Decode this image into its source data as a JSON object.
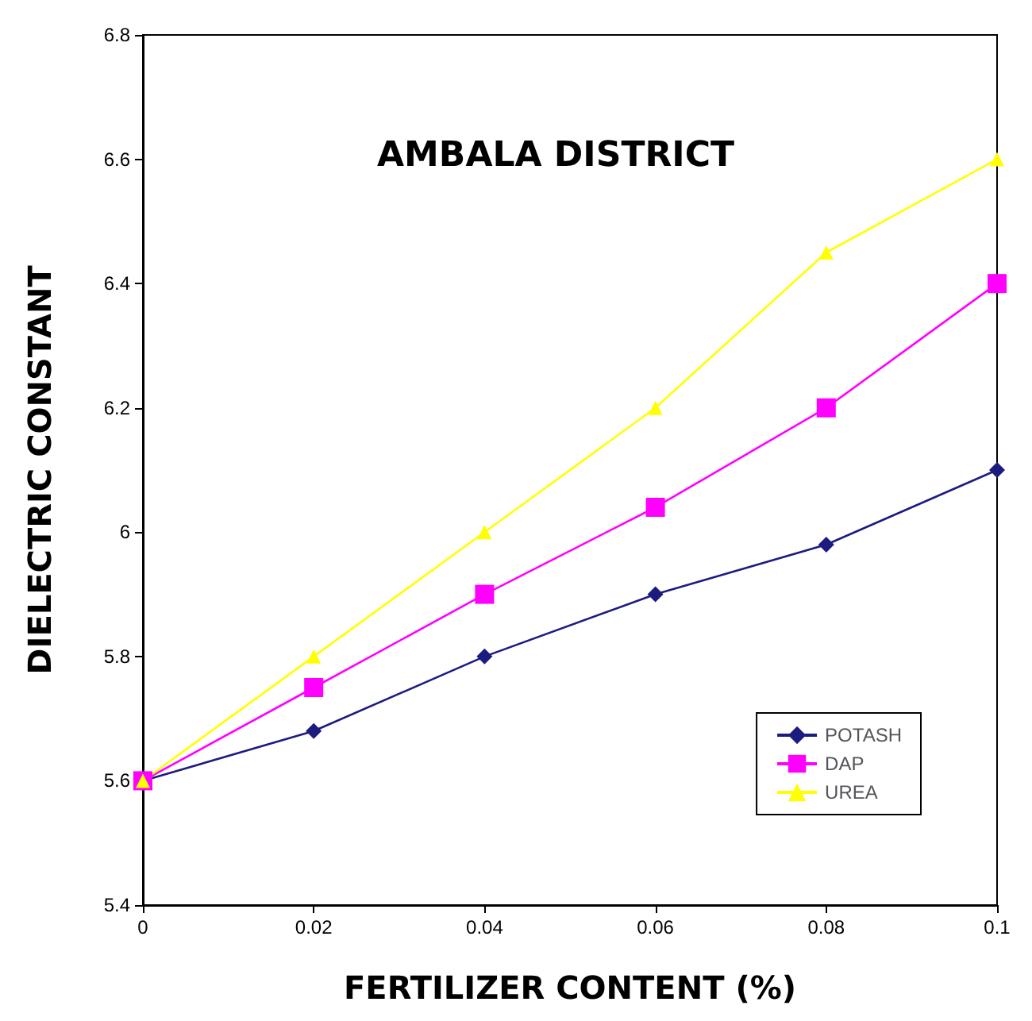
{
  "chart_data": {
    "type": "line",
    "title": "AMBALA DISTRICT",
    "xlabel": "FERTILIZER CONTENT (%)",
    "ylabel": "DIELECTRIC CONSTANT",
    "x": [
      0,
      0.02,
      0.04,
      0.06,
      0.08,
      0.1
    ],
    "series": [
      {
        "name": "POTASH",
        "color": "#1c1c80",
        "marker": "diamond",
        "values": [
          5.6,
          5.68,
          5.8,
          5.9,
          5.98,
          6.1
        ]
      },
      {
        "name": "DAP",
        "color": "#ff00ff",
        "marker": "square",
        "values": [
          5.6,
          5.75,
          5.9,
          6.04,
          6.2,
          6.4
        ]
      },
      {
        "name": "UREA",
        "color": "#ffff00",
        "marker": "triangle",
        "values": [
          5.6,
          5.8,
          6.0,
          6.2,
          6.45,
          6.6
        ]
      }
    ],
    "xlim": [
      0,
      0.1
    ],
    "xticks": [
      0,
      0.02,
      0.04,
      0.06,
      0.08,
      0.1
    ],
    "ylim": [
      5.4,
      6.8
    ],
    "yticks": [
      5.4,
      5.6,
      5.8,
      6,
      6.2,
      6.4,
      6.6,
      6.8
    ],
    "grid": false,
    "legend": "bottom right",
    "line_style": "solid"
  }
}
